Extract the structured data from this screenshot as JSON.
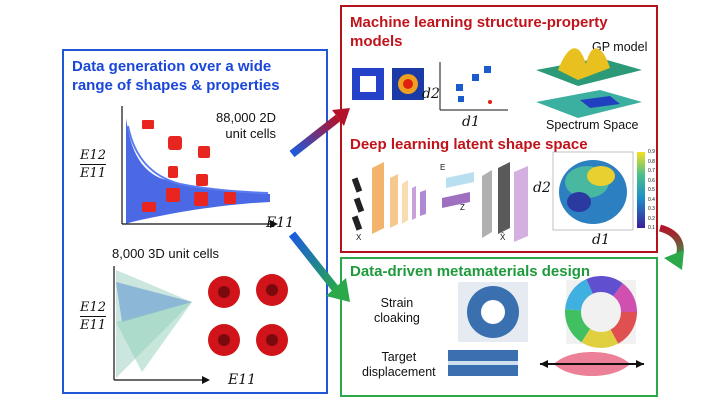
{
  "left_panel": {
    "title_line1": "Data generation over a wide",
    "title_line2": "range of shapes & properties",
    "count_2d_line1": "88,000 2D",
    "count_2d_line2": "unit cells",
    "count_3d": "8,000 3D unit cells",
    "ylabel_num": "E12",
    "ylabel_den": "E11",
    "xlabel": "E11"
  },
  "ml_panel": {
    "title_line1": "Machine learning structure-property",
    "title_line2": "models",
    "gp_label": "GP model",
    "spectrum_label": "Spectrum Space",
    "d2": "d2",
    "d1": "d1",
    "dl_title": "Deep learning latent shape space",
    "latent_d2": "d2",
    "latent_d1": "d1",
    "colorbar_ticks": [
      "0.9",
      "0.8",
      "0.7",
      "0.6",
      "0.5",
      "0.4",
      "0.3",
      "0.2",
      "0.1"
    ],
    "net_labels": {
      "x": "X",
      "e": "E",
      "xhat": "X̂",
      "z": "Z"
    }
  },
  "design_panel": {
    "title": "Data-driven metamaterials design",
    "strain_line1": "Strain",
    "strain_line2": "cloaking",
    "target_line1": "Target",
    "target_line2": "displacement"
  },
  "colors": {
    "blue": "#1a47d9",
    "red": "#c0141c",
    "green": "#1e9a3c",
    "cell_red": "#e8261f"
  }
}
